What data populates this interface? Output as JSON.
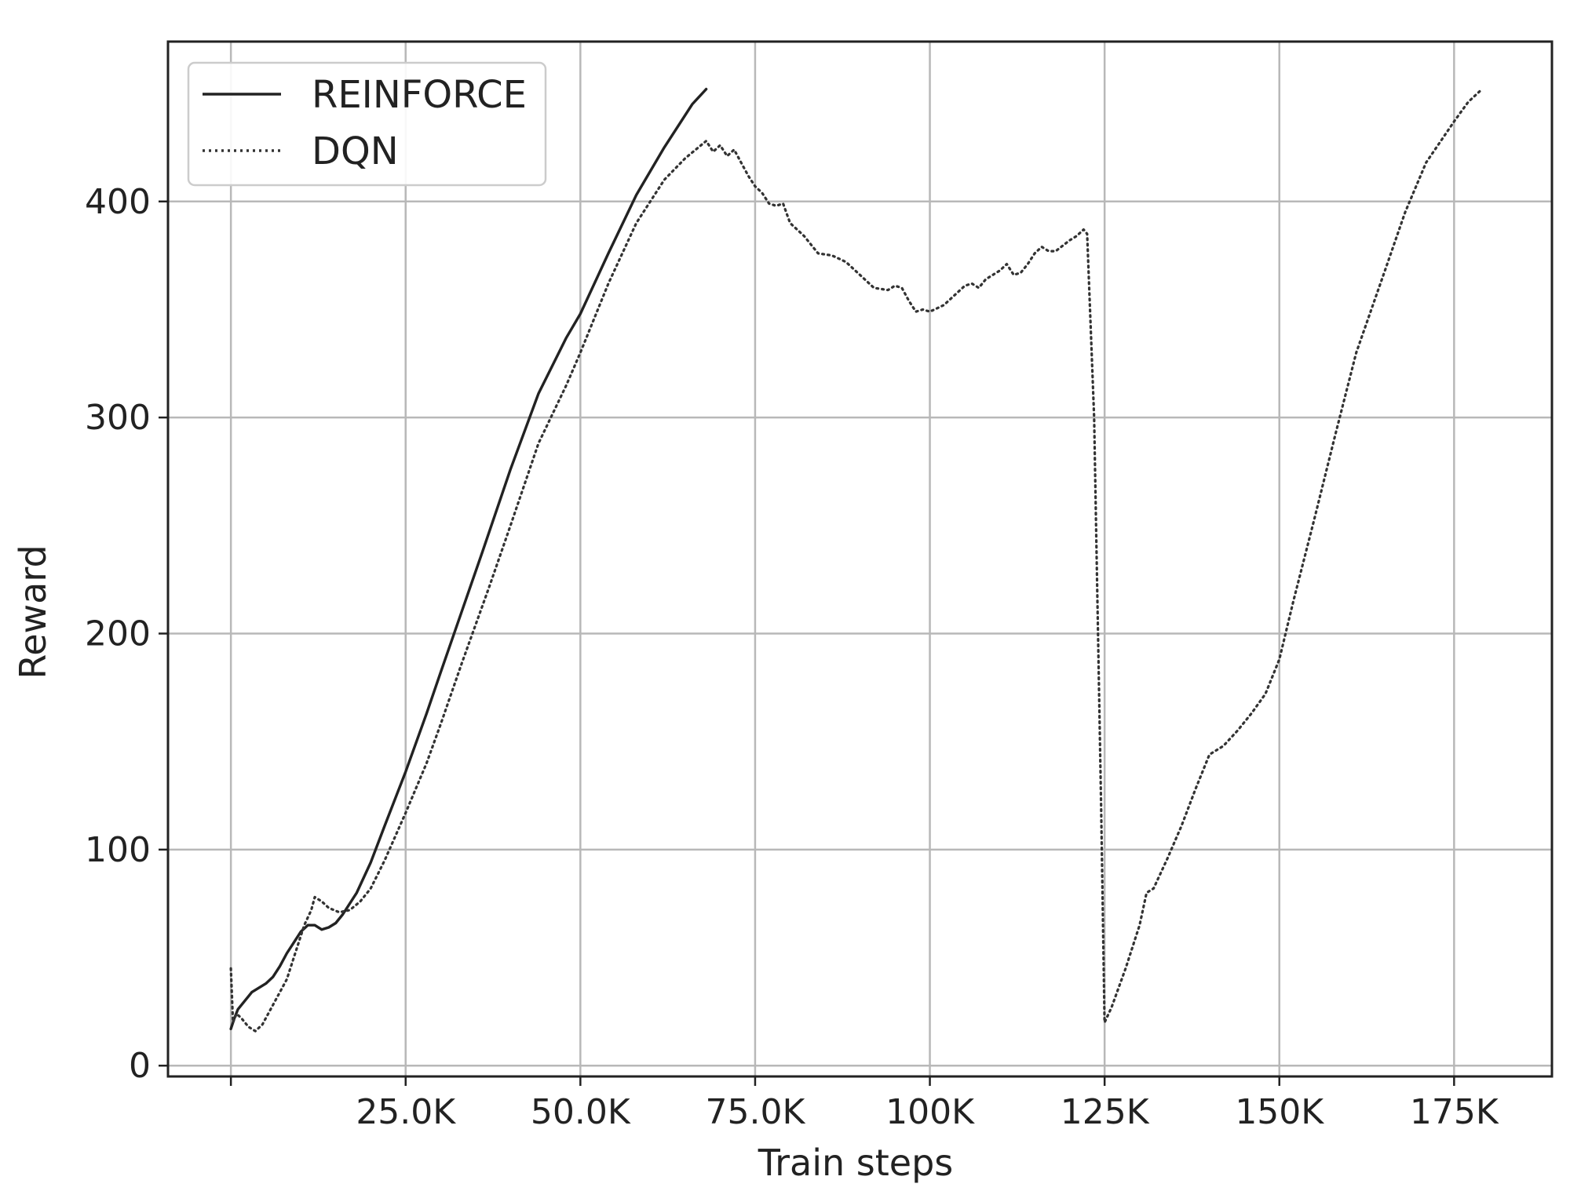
{
  "chart_data": {
    "type": "line",
    "title": "",
    "xlabel": "Train steps",
    "ylabel": "Reward",
    "xlim": [
      -9000,
      189000
    ],
    "ylim": [
      -5,
      474
    ],
    "grid": true,
    "legend_position": "top-left",
    "x_ticks": [
      {
        "value": 25000,
        "label": "25.0K"
      },
      {
        "value": 50000,
        "label": "50.0K"
      },
      {
        "value": 75000,
        "label": "75.0K"
      },
      {
        "value": 100000,
        "label": "100K"
      },
      {
        "value": 125000,
        "label": "125K"
      },
      {
        "value": 150000,
        "label": "150K"
      },
      {
        "value": 175000,
        "label": "175K"
      }
    ],
    "x_gridlines": [
      0,
      25000,
      50000,
      75000,
      100000,
      125000,
      150000,
      175000
    ],
    "y_ticks": [
      {
        "value": 0,
        "label": "0"
      },
      {
        "value": 100,
        "label": "100"
      },
      {
        "value": 200,
        "label": "200"
      },
      {
        "value": 300,
        "label": "300"
      },
      {
        "value": 400,
        "label": "400"
      }
    ],
    "series": [
      {
        "name": "REINFORCE",
        "style": "solid",
        "color": "#222222",
        "points": [
          [
            0,
            17
          ],
          [
            500,
            22
          ],
          [
            1000,
            26
          ],
          [
            2000,
            30
          ],
          [
            3000,
            34
          ],
          [
            5000,
            38
          ],
          [
            6000,
            41
          ],
          [
            7000,
            46
          ],
          [
            8000,
            52
          ],
          [
            9000,
            57
          ],
          [
            10000,
            62
          ],
          [
            11000,
            65
          ],
          [
            12000,
            65
          ],
          [
            13000,
            63
          ],
          [
            14000,
            64
          ],
          [
            15000,
            66
          ],
          [
            16000,
            70
          ],
          [
            18000,
            80
          ],
          [
            20000,
            94
          ],
          [
            22000,
            111
          ],
          [
            25000,
            136
          ],
          [
            28000,
            163
          ],
          [
            30000,
            182
          ],
          [
            33000,
            210
          ],
          [
            36000,
            238
          ],
          [
            40000,
            276
          ],
          [
            44000,
            311
          ],
          [
            48000,
            337
          ],
          [
            50000,
            348
          ],
          [
            54000,
            376
          ],
          [
            58000,
            403
          ],
          [
            62000,
            425
          ],
          [
            66000,
            445
          ],
          [
            68000,
            452
          ]
        ]
      },
      {
        "name": "DQN",
        "style": "dotted",
        "color": "#333333",
        "points": [
          [
            0,
            45
          ],
          [
            300,
            20
          ],
          [
            800,
            24
          ],
          [
            1500,
            22
          ],
          [
            2500,
            18
          ],
          [
            3500,
            16
          ],
          [
            4500,
            19
          ],
          [
            6000,
            28
          ],
          [
            8000,
            40
          ],
          [
            9500,
            55
          ],
          [
            10500,
            65
          ],
          [
            11500,
            72
          ],
          [
            12000,
            78
          ],
          [
            13000,
            76
          ],
          [
            14000,
            73
          ],
          [
            15500,
            71
          ],
          [
            17000,
            72
          ],
          [
            18500,
            76
          ],
          [
            20000,
            82
          ],
          [
            22000,
            95
          ],
          [
            25000,
            117
          ],
          [
            28000,
            140
          ],
          [
            30000,
            158
          ],
          [
            33000,
            186
          ],
          [
            37000,
            222
          ],
          [
            40000,
            250
          ],
          [
            44000,
            288
          ],
          [
            48000,
            315
          ],
          [
            50000,
            330
          ],
          [
            54000,
            362
          ],
          [
            58000,
            390
          ],
          [
            62000,
            410
          ],
          [
            65000,
            420
          ],
          [
            68000,
            428
          ],
          [
            69000,
            423
          ],
          [
            70000,
            426
          ],
          [
            71000,
            421
          ],
          [
            72000,
            424
          ],
          [
            73000,
            418
          ],
          [
            74000,
            412
          ],
          [
            75000,
            407
          ],
          [
            76000,
            404
          ],
          [
            77000,
            399
          ],
          [
            78000,
            398
          ],
          [
            79000,
            399
          ],
          [
            80000,
            390
          ],
          [
            82000,
            384
          ],
          [
            84000,
            376
          ],
          [
            86000,
            375
          ],
          [
            88000,
            372
          ],
          [
            90000,
            366
          ],
          [
            92000,
            360
          ],
          [
            94000,
            359
          ],
          [
            95000,
            361
          ],
          [
            96000,
            360
          ],
          [
            97000,
            354
          ],
          [
            98000,
            349
          ],
          [
            99000,
            350
          ],
          [
            100000,
            349
          ],
          [
            102000,
            352
          ],
          [
            104000,
            358
          ],
          [
            105000,
            361
          ],
          [
            106000,
            362
          ],
          [
            107000,
            360
          ],
          [
            108000,
            364
          ],
          [
            110000,
            368
          ],
          [
            111000,
            371
          ],
          [
            112000,
            366
          ],
          [
            113000,
            367
          ],
          [
            114000,
            371
          ],
          [
            115000,
            376
          ],
          [
            116000,
            379
          ],
          [
            117000,
            377
          ],
          [
            118000,
            377
          ],
          [
            120000,
            382
          ],
          [
            121000,
            384
          ],
          [
            122000,
            387
          ],
          [
            122500,
            385
          ],
          [
            123500,
            300
          ],
          [
            124500,
            120
          ],
          [
            125000,
            20
          ],
          [
            126000,
            27
          ],
          [
            128000,
            45
          ],
          [
            130000,
            65
          ],
          [
            131000,
            80
          ],
          [
            132000,
            82
          ],
          [
            134000,
            96
          ],
          [
            136000,
            111
          ],
          [
            138000,
            128
          ],
          [
            140000,
            144
          ],
          [
            142000,
            148
          ],
          [
            144000,
            155
          ],
          [
            146000,
            163
          ],
          [
            148000,
            172
          ],
          [
            150000,
            188
          ],
          [
            152000,
            215
          ],
          [
            155000,
            253
          ],
          [
            158000,
            292
          ],
          [
            161000,
            330
          ],
          [
            165000,
            367
          ],
          [
            168000,
            395
          ],
          [
            171000,
            418
          ],
          [
            175000,
            437
          ],
          [
            177000,
            446
          ],
          [
            179000,
            452
          ]
        ]
      }
    ]
  }
}
